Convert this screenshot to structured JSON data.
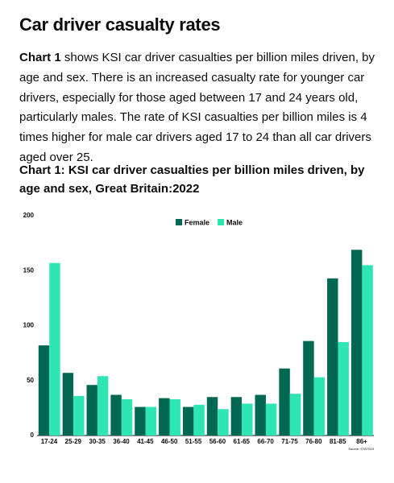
{
  "heading": "Car driver casualty rates",
  "intro": {
    "bold": "Chart 1",
    "text": " shows KSI car driver casualties per billion miles driven, by age and sex. There is an increased casualty rate for younger car drivers, especially for those aged between 17 and 24 years old, particularly males. The rate of KSI casualties per billion miles is 4 times higher for male car drivers aged 17 to 24 than all car drivers aged over 25."
  },
  "chart_heading": "Chart 1: KSI car driver casualties per billion miles driven, by age and sex, Great Britain:2022",
  "chart_data": {
    "type": "bar",
    "categories": [
      "17-24",
      "25-29",
      "30-35",
      "36-40",
      "41-45",
      "46-50",
      "51-55",
      "56-60",
      "61-65",
      "66-70",
      "71-75",
      "76-80",
      "81-85",
      "86+"
    ],
    "series": [
      {
        "name": "Female",
        "color": "#006853",
        "values": [
          82,
          57,
          46,
          37,
          26,
          34,
          26,
          35,
          35,
          37,
          61,
          86,
          143,
          169
        ]
      },
      {
        "name": "Male",
        "color": "#2ee6b4",
        "values": [
          157,
          36,
          54,
          33,
          26,
          33,
          28,
          24,
          29,
          29,
          38,
          53,
          85,
          155
        ]
      }
    ],
    "ylim": [
      0,
      200
    ],
    "yticks": [
      0,
      50,
      100,
      150,
      200
    ],
    "source": "Source: STATS19"
  }
}
